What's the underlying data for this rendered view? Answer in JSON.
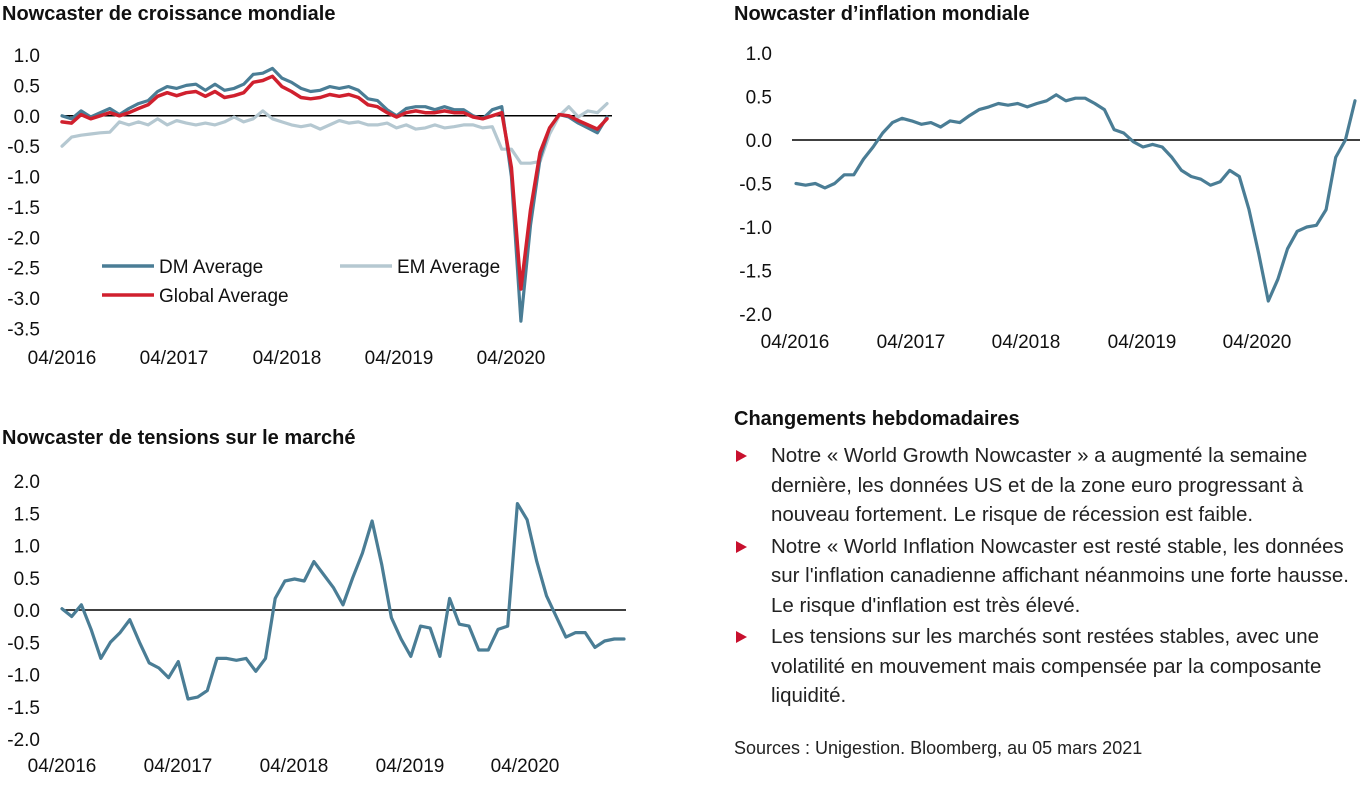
{
  "charts": {
    "growth": {
      "title": "Nowcaster de croissance mondiale"
    },
    "inflation": {
      "title": "Nowcaster d’inflation mondiale"
    },
    "stress": {
      "title": "Nowcaster de tensions sur le marché"
    }
  },
  "panel": {
    "heading": "Changements hebdomadaires",
    "bullets": [
      "Notre « World Growth Nowcaster » a augmenté la semaine dernière, les données US et de la zone euro progressant à nouveau fortement. Le risque de récession est faible.",
      "Notre « World Inflation Nowcaster est resté stable, les données sur l'inflation canadienne affichant néanmoins une forte hausse. Le risque d'inflation est très élevé.",
      "Les tensions sur les marchés sont restées stables, avec une volatilité en mouvement mais compensée par la composante liquidité."
    ]
  },
  "sources": "Sources : Unigestion. Bloomberg, au 05 mars 2021",
  "colors": {
    "dm": "#4a7d95",
    "em": "#b5c8d1",
    "global": "#d0202e",
    "zero_line": "#000000",
    "bullet": "#c8102e"
  },
  "chart_data": [
    {
      "type": "line",
      "title": "Nowcaster de croissance mondiale",
      "x_ticks": [
        "04/2016",
        "04/2017",
        "04/2018",
        "04/2019",
        "04/2020"
      ],
      "y_ticks": [
        "1.0",
        "0.5",
        "0.0",
        "-0.5",
        "-1.0",
        "-1.5",
        "-2.0",
        "-2.5",
        "-3.0",
        "-3.5"
      ],
      "ylim": [
        -3.5,
        1.0
      ],
      "x_start": "04/2016",
      "legend": [
        "DM Average",
        "EM Average",
        "Global Average"
      ],
      "legend_position": "bottom-left",
      "series": [
        {
          "name": "DM Average",
          "color": "#4a7d95",
          "values": [
            0.0,
            -0.05,
            0.08,
            -0.02,
            0.05,
            0.12,
            0.02,
            0.12,
            0.2,
            0.25,
            0.4,
            0.48,
            0.45,
            0.5,
            0.52,
            0.42,
            0.52,
            0.42,
            0.45,
            0.52,
            0.68,
            0.7,
            0.78,
            0.62,
            0.55,
            0.45,
            0.4,
            0.42,
            0.48,
            0.45,
            0.48,
            0.42,
            0.28,
            0.25,
            0.1,
            0.0,
            0.12,
            0.15,
            0.15,
            0.1,
            0.15,
            0.1,
            0.1,
            0.0,
            -0.05,
            0.1,
            0.15,
            -1.0,
            -3.38,
            -1.8,
            -0.7,
            -0.2,
            0.02,
            -0.02,
            -0.12,
            -0.2,
            -0.28,
            -0.02
          ]
        },
        {
          "name": "EM Average",
          "color": "#b5c8d1",
          "values": [
            -0.5,
            -0.35,
            -0.32,
            -0.3,
            -0.28,
            -0.27,
            -0.1,
            -0.15,
            -0.1,
            -0.15,
            -0.05,
            -0.15,
            -0.08,
            -0.12,
            -0.15,
            -0.12,
            -0.15,
            -0.1,
            -0.02,
            -0.1,
            -0.05,
            0.08,
            -0.05,
            -0.1,
            -0.15,
            -0.18,
            -0.15,
            -0.22,
            -0.15,
            -0.08,
            -0.12,
            -0.1,
            -0.15,
            -0.15,
            -0.12,
            -0.2,
            -0.15,
            -0.22,
            -0.2,
            -0.15,
            -0.2,
            -0.18,
            -0.15,
            -0.15,
            -0.2,
            -0.18,
            -0.55,
            -0.55,
            -0.78,
            -0.78,
            -0.75,
            -0.3,
            0.0,
            0.15,
            -0.02,
            0.08,
            0.05,
            0.2
          ]
        },
        {
          "name": "Global Average",
          "color": "#d0202e",
          "values": [
            -0.1,
            -0.12,
            0.02,
            -0.05,
            0.0,
            0.05,
            0.0,
            0.05,
            0.12,
            0.18,
            0.32,
            0.38,
            0.33,
            0.38,
            0.4,
            0.32,
            0.4,
            0.3,
            0.33,
            0.38,
            0.55,
            0.58,
            0.65,
            0.48,
            0.4,
            0.3,
            0.28,
            0.3,
            0.35,
            0.32,
            0.35,
            0.3,
            0.18,
            0.15,
            0.05,
            -0.02,
            0.05,
            0.08,
            0.05,
            0.05,
            0.08,
            0.05,
            0.05,
            -0.02,
            -0.05,
            0.0,
            0.05,
            -0.85,
            -2.85,
            -1.55,
            -0.6,
            -0.2,
            0.02,
            0.0,
            -0.08,
            -0.15,
            -0.22,
            -0.05
          ]
        }
      ]
    },
    {
      "type": "line",
      "title": "Nowcaster d’inflation mondiale",
      "x_ticks": [
        "04/2016",
        "04/2017",
        "04/2018",
        "04/2019",
        "04/2020"
      ],
      "y_ticks": [
        "1.0",
        "0.5",
        "0.0",
        "-0.5",
        "-1.0",
        "-1.5",
        "-2.0"
      ],
      "ylim": [
        -2.0,
        1.0
      ],
      "x_start": "04/2016",
      "series": [
        {
          "color": "#4a7d95",
          "values": [
            -0.5,
            -0.52,
            -0.5,
            -0.55,
            -0.5,
            -0.4,
            -0.4,
            -0.22,
            -0.08,
            0.08,
            0.2,
            0.25,
            0.22,
            0.18,
            0.2,
            0.15,
            0.22,
            0.2,
            0.28,
            0.35,
            0.38,
            0.42,
            0.4,
            0.42,
            0.38,
            0.42,
            0.45,
            0.52,
            0.45,
            0.48,
            0.48,
            0.42,
            0.35,
            0.12,
            0.08,
            -0.02,
            -0.08,
            -0.05,
            -0.08,
            -0.2,
            -0.35,
            -0.42,
            -0.45,
            -0.52,
            -0.48,
            -0.35,
            -0.42,
            -0.8,
            -1.3,
            -1.85,
            -1.6,
            -1.25,
            -1.05,
            -1.0,
            -0.98,
            -0.8,
            -0.2,
            0.0,
            0.45
          ]
        }
      ]
    },
    {
      "type": "line",
      "title": "Nowcaster de tensions sur le marché",
      "x_ticks": [
        "04/2016",
        "04/2017",
        "04/2018",
        "04/2019",
        "04/2020"
      ],
      "y_ticks": [
        "2.0",
        "1.5",
        "1.0",
        "0.5",
        "0.0",
        "-0.5",
        "-1.0",
        "-1.5",
        "-2.0"
      ],
      "ylim": [
        -2.0,
        2.0
      ],
      "x_start": "04/2016",
      "series": [
        {
          "color": "#4a7d95",
          "values": [
            0.02,
            -0.1,
            0.08,
            -0.3,
            -0.75,
            -0.5,
            -0.35,
            -0.15,
            -0.5,
            -0.82,
            -0.9,
            -1.05,
            -0.8,
            -1.38,
            -1.35,
            -1.25,
            -0.75,
            -0.75,
            -0.78,
            -0.75,
            -0.95,
            -0.75,
            0.18,
            0.45,
            0.48,
            0.45,
            0.75,
            0.55,
            0.35,
            0.08,
            0.5,
            0.88,
            1.38,
            0.7,
            -0.12,
            -0.45,
            -0.72,
            -0.25,
            -0.28,
            -0.72,
            0.18,
            -0.22,
            -0.25,
            -0.62,
            -0.62,
            -0.3,
            -0.25,
            1.65,
            1.4,
            0.75,
            0.22,
            -0.1,
            -0.42,
            -0.35,
            -0.35,
            -0.58,
            -0.48,
            -0.45,
            -0.45
          ]
        }
      ]
    }
  ]
}
